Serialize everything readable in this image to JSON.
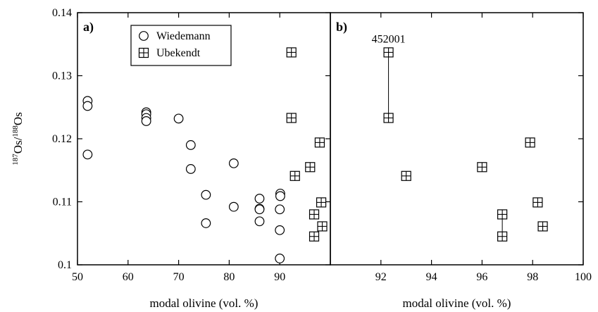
{
  "chart_data": [
    {
      "type": "scatter",
      "panel_label": "a)",
      "xlabel": "modal olivine (vol. %)",
      "ylabel": {
        "sup1": "187",
        "os1": "Os/",
        "sup2": "188",
        "os2": "Os"
      },
      "xlim": [
        50,
        100
      ],
      "ylim": [
        0.1,
        0.14
      ],
      "xticks": [
        "50",
        "60",
        "70",
        "80",
        "90"
      ],
      "xtick_values": [
        50,
        60,
        70,
        80,
        90
      ],
      "yticks": [
        "0.1",
        "0.11",
        "0.12",
        "0.13",
        "0.14"
      ],
      "ytick_values": [
        0.1,
        0.11,
        0.12,
        0.13,
        0.14
      ],
      "grid": false,
      "legend_position": "top-center",
      "series": [
        {
          "name": "Wiedemann",
          "marker": "circle",
          "points": [
            {
              "x": 52.0,
              "y": 0.126
            },
            {
              "x": 52.0,
              "y": 0.1252
            },
            {
              "x": 52.0,
              "y": 0.1175
            },
            {
              "x": 63.6,
              "y": 0.1242
            },
            {
              "x": 63.6,
              "y": 0.1239
            },
            {
              "x": 63.6,
              "y": 0.1233
            },
            {
              "x": 63.6,
              "y": 0.1228
            },
            {
              "x": 70.0,
              "y": 0.1232
            },
            {
              "x": 72.4,
              "y": 0.119
            },
            {
              "x": 72.4,
              "y": 0.1152
            },
            {
              "x": 75.4,
              "y": 0.1111
            },
            {
              "x": 75.4,
              "y": 0.1066
            },
            {
              "x": 80.9,
              "y": 0.1161
            },
            {
              "x": 80.9,
              "y": 0.1092
            },
            {
              "x": 86.0,
              "y": 0.1105
            },
            {
              "x": 86.0,
              "y": 0.1089
            },
            {
              "x": 86.0,
              "y": 0.1088
            },
            {
              "x": 86.0,
              "y": 0.1069
            },
            {
              "x": 90.1,
              "y": 0.1113
            },
            {
              "x": 90.1,
              "y": 0.1109
            },
            {
              "x": 90.0,
              "y": 0.1088
            },
            {
              "x": 90.0,
              "y": 0.1055
            },
            {
              "x": 90.0,
              "y": 0.101
            }
          ]
        },
        {
          "name": "Ubekendt",
          "marker": "boxed-plus",
          "points": [
            {
              "x": 92.3,
              "y": 0.1337
            },
            {
              "x": 92.3,
              "y": 0.1233
            },
            {
              "x": 93.0,
              "y": 0.1141
            },
            {
              "x": 96.0,
              "y": 0.1155
            },
            {
              "x": 97.9,
              "y": 0.1194
            },
            {
              "x": 96.8,
              "y": 0.108
            },
            {
              "x": 96.8,
              "y": 0.1045
            },
            {
              "x": 98.2,
              "y": 0.1099
            },
            {
              "x": 98.4,
              "y": 0.1061
            }
          ]
        }
      ]
    },
    {
      "type": "scatter",
      "panel_label": "b)",
      "xlabel": "modal olivine (vol. %)",
      "xlim": [
        90,
        100
      ],
      "ylim": [
        0.1,
        0.14
      ],
      "xticks": [
        "92",
        "94",
        "96",
        "98",
        "100"
      ],
      "xtick_values": [
        92,
        94,
        96,
        98,
        100
      ],
      "grid": false,
      "annotation": {
        "text": "452001",
        "x": 92.3,
        "y": 0.1337
      },
      "series": [
        {
          "name": "Ubekendt",
          "marker": "boxed-plus",
          "points": [
            {
              "x": 92.3,
              "y": 0.1337
            },
            {
              "x": 92.3,
              "y": 0.1233
            },
            {
              "x": 93.0,
              "y": 0.1141
            },
            {
              "x": 96.0,
              "y": 0.1155
            },
            {
              "x": 97.9,
              "y": 0.1194
            },
            {
              "x": 96.8,
              "y": 0.108
            },
            {
              "x": 96.8,
              "y": 0.1045
            },
            {
              "x": 98.2,
              "y": 0.1099
            },
            {
              "x": 98.4,
              "y": 0.1061
            }
          ]
        }
      ],
      "tie_lines": [
        {
          "x1": 92.3,
          "y1": 0.1337,
          "x2": 92.3,
          "y2": 0.1233
        },
        {
          "x1": 96.8,
          "y1": 0.108,
          "x2": 96.8,
          "y2": 0.1045
        }
      ]
    }
  ]
}
